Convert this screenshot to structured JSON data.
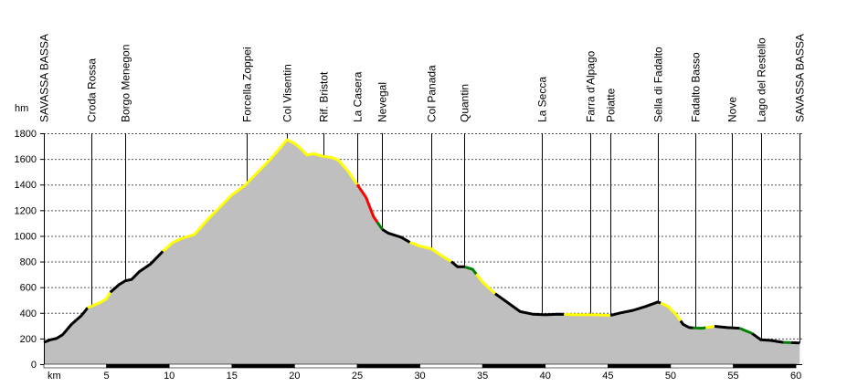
{
  "chart_data": {
    "type": "area",
    "xlabel": "km",
    "ylabel": "hm",
    "xlim": [
      0,
      60.5
    ],
    "ylim": [
      0,
      1800
    ],
    "xticks": [
      5,
      10,
      15,
      20,
      25,
      30,
      35,
      40,
      45,
      50,
      55,
      60
    ],
    "yticks": [
      0,
      200,
      400,
      600,
      800,
      1000,
      1200,
      1400,
      1600,
      1800
    ],
    "grid": "horizontal-dotted",
    "fill_color": "#bfbfbf",
    "locations": [
      {
        "name": "SAVASSA BASSA",
        "km": 0
      },
      {
        "name": "Croda Rossa",
        "km": 3.8
      },
      {
        "name": "Borgo Menegon",
        "km": 6.5
      },
      {
        "name": "Forcella Zoppei",
        "km": 16.2
      },
      {
        "name": "Col Visentin",
        "km": 19.4
      },
      {
        "name": "Rif. Bristot",
        "km": 22.3
      },
      {
        "name": "La Casera",
        "km": 25.0
      },
      {
        "name": "Nevegal",
        "km": 27.0
      },
      {
        "name": "Col Panada",
        "km": 30.9
      },
      {
        "name": "Quantin",
        "km": 33.5
      },
      {
        "name": "La Secca",
        "km": 39.7
      },
      {
        "name": "Farra d'Alpago",
        "km": 43.6
      },
      {
        "name": "Poiatte",
        "km": 45.2
      },
      {
        "name": "Sella di Fadalto",
        "km": 49.0
      },
      {
        "name": "Fadalto Basso",
        "km": 52.0
      },
      {
        "name": "Nove",
        "km": 54.9
      },
      {
        "name": "Lago del Restello",
        "km": 57.2
      },
      {
        "name": "SAVASSA BASSA",
        "km": 60.3
      }
    ],
    "profile": [
      {
        "x": 0,
        "y": 170
      },
      {
        "x": 0.5,
        "y": 190
      },
      {
        "x": 1.0,
        "y": 200
      },
      {
        "x": 1.5,
        "y": 230
      },
      {
        "x": 2.2,
        "y": 310
      },
      {
        "x": 3.0,
        "y": 380
      },
      {
        "x": 3.5,
        "y": 440
      },
      {
        "x": 4.0,
        "y": 460
      },
      {
        "x": 4.5,
        "y": 480
      },
      {
        "x": 5.0,
        "y": 510
      },
      {
        "x": 5.3,
        "y": 560
      },
      {
        "x": 6.0,
        "y": 620
      },
      {
        "x": 6.5,
        "y": 650
      },
      {
        "x": 7.0,
        "y": 660
      },
      {
        "x": 7.6,
        "y": 720
      },
      {
        "x": 8.5,
        "y": 780
      },
      {
        "x": 9.5,
        "y": 880
      },
      {
        "x": 10.3,
        "y": 950
      },
      {
        "x": 11.0,
        "y": 980
      },
      {
        "x": 12.0,
        "y": 1010
      },
      {
        "x": 13.0,
        "y": 1120
      },
      {
        "x": 14.0,
        "y": 1220
      },
      {
        "x": 15.0,
        "y": 1320
      },
      {
        "x": 16.0,
        "y": 1390
      },
      {
        "x": 17.0,
        "y": 1490
      },
      {
        "x": 18.0,
        "y": 1590
      },
      {
        "x": 18.8,
        "y": 1680
      },
      {
        "x": 19.4,
        "y": 1750
      },
      {
        "x": 20.0,
        "y": 1720
      },
      {
        "x": 20.5,
        "y": 1680
      },
      {
        "x": 21.0,
        "y": 1630
      },
      {
        "x": 21.5,
        "y": 1640
      },
      {
        "x": 22.3,
        "y": 1620
      },
      {
        "x": 23.0,
        "y": 1610
      },
      {
        "x": 23.5,
        "y": 1590
      },
      {
        "x": 24.3,
        "y": 1500
      },
      {
        "x": 25.0,
        "y": 1400
      },
      {
        "x": 25.7,
        "y": 1300
      },
      {
        "x": 26.3,
        "y": 1150
      },
      {
        "x": 27.0,
        "y": 1050
      },
      {
        "x": 27.5,
        "y": 1020
      },
      {
        "x": 28.5,
        "y": 990
      },
      {
        "x": 29.2,
        "y": 950
      },
      {
        "x": 30.0,
        "y": 920
      },
      {
        "x": 30.9,
        "y": 900
      },
      {
        "x": 31.5,
        "y": 860
      },
      {
        "x": 32.5,
        "y": 800
      },
      {
        "x": 33.0,
        "y": 760
      },
      {
        "x": 33.5,
        "y": 760
      },
      {
        "x": 34.2,
        "y": 740
      },
      {
        "x": 35.0,
        "y": 640
      },
      {
        "x": 36.0,
        "y": 550
      },
      {
        "x": 37.0,
        "y": 480
      },
      {
        "x": 38.0,
        "y": 410
      },
      {
        "x": 39.0,
        "y": 390
      },
      {
        "x": 40.0,
        "y": 385
      },
      {
        "x": 41.0,
        "y": 390
      },
      {
        "x": 42.5,
        "y": 385
      },
      {
        "x": 44.0,
        "y": 385
      },
      {
        "x": 45.2,
        "y": 380
      },
      {
        "x": 46.0,
        "y": 400
      },
      {
        "x": 47.0,
        "y": 420
      },
      {
        "x": 48.0,
        "y": 450
      },
      {
        "x": 49.0,
        "y": 485
      },
      {
        "x": 49.8,
        "y": 450
      },
      {
        "x": 50.5,
        "y": 380
      },
      {
        "x": 51.0,
        "y": 310
      },
      {
        "x": 51.5,
        "y": 285
      },
      {
        "x": 52.5,
        "y": 280
      },
      {
        "x": 53.5,
        "y": 295
      },
      {
        "x": 54.5,
        "y": 285
      },
      {
        "x": 55.5,
        "y": 280
      },
      {
        "x": 56.5,
        "y": 240
      },
      {
        "x": 57.2,
        "y": 190
      },
      {
        "x": 58.0,
        "y": 185
      },
      {
        "x": 59.0,
        "y": 170
      },
      {
        "x": 60.3,
        "y": 165
      }
    ],
    "segments": [
      {
        "from": 0,
        "to": 3.5,
        "color": "#000000"
      },
      {
        "from": 3.5,
        "to": 5.3,
        "color": "#ffff00"
      },
      {
        "from": 5.3,
        "to": 9.5,
        "color": "#000000"
      },
      {
        "from": 9.5,
        "to": 25.0,
        "color": "#ffff00"
      },
      {
        "from": 25.0,
        "to": 26.6,
        "color": "#ff0000"
      },
      {
        "from": 26.6,
        "to": 27.0,
        "color": "#008000"
      },
      {
        "from": 27.0,
        "to": 29.2,
        "color": "#000000"
      },
      {
        "from": 29.2,
        "to": 32.5,
        "color": "#ffff00"
      },
      {
        "from": 32.5,
        "to": 33.6,
        "color": "#000000"
      },
      {
        "from": 33.6,
        "to": 34.5,
        "color": "#008000"
      },
      {
        "from": 34.5,
        "to": 36.0,
        "color": "#ffff00"
      },
      {
        "from": 36.0,
        "to": 41.5,
        "color": "#000000"
      },
      {
        "from": 41.5,
        "to": 45.2,
        "color": "#ffff00"
      },
      {
        "from": 45.2,
        "to": 49.2,
        "color": "#000000"
      },
      {
        "from": 49.2,
        "to": 50.8,
        "color": "#ffff00"
      },
      {
        "from": 50.8,
        "to": 51.8,
        "color": "#000000"
      },
      {
        "from": 51.8,
        "to": 52.8,
        "color": "#008000"
      },
      {
        "from": 52.8,
        "to": 53.5,
        "color": "#ffff00"
      },
      {
        "from": 53.5,
        "to": 55.5,
        "color": "#000000"
      },
      {
        "from": 55.5,
        "to": 56.5,
        "color": "#008000"
      },
      {
        "from": 56.5,
        "to": 59.0,
        "color": "#000000"
      },
      {
        "from": 59.0,
        "to": 59.6,
        "color": "#008000"
      },
      {
        "from": 59.6,
        "to": 60.3,
        "color": "#000000"
      }
    ]
  }
}
